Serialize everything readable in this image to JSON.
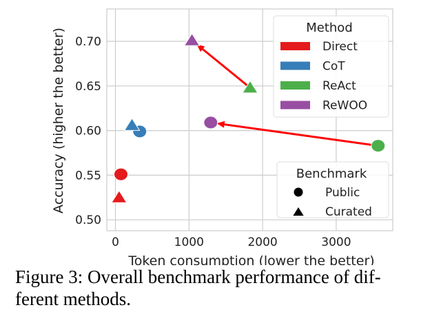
{
  "chart_data": {
    "type": "scatter",
    "xlabel": "Token consumption (lower the better)",
    "ylabel": "Accuracy (higher the better)",
    "xlim": [
      -100,
      3800
    ],
    "ylim": [
      0.49,
      0.73
    ],
    "xticks": [
      "0",
      "1000",
      "2000",
      "3000"
    ],
    "yticks": [
      "0.50",
      "0.55",
      "0.60",
      "0.65",
      "0.70"
    ],
    "grid": true,
    "series": [
      {
        "name": "Direct",
        "color": "#e41a1c",
        "points": [
          {
            "benchmark": "Public",
            "x": 75,
            "y": 0.551
          },
          {
            "benchmark": "Curated",
            "x": 50,
            "y": 0.525
          }
        ]
      },
      {
        "name": "CoT",
        "color": "#377eb8",
        "points": [
          {
            "benchmark": "Public",
            "x": 330,
            "y": 0.599
          },
          {
            "benchmark": "Curated",
            "x": 225,
            "y": 0.606
          }
        ]
      },
      {
        "name": "ReAct",
        "color": "#4daf4a",
        "points": [
          {
            "benchmark": "Public",
            "x": 3570,
            "y": 0.583
          },
          {
            "benchmark": "Curated",
            "x": 1830,
            "y": 0.648
          }
        ]
      },
      {
        "name": "ReWOO",
        "color": "#984ea3",
        "points": [
          {
            "benchmark": "Public",
            "x": 1295,
            "y": 0.609
          },
          {
            "benchmark": "Curated",
            "x": 1040,
            "y": 0.701
          }
        ]
      }
    ],
    "arrows": [
      {
        "from": "ReAct",
        "to": "ReWOO",
        "benchmark": "Curated",
        "color": "#ff0000"
      },
      {
        "from": "ReAct",
        "to": "ReWOO",
        "benchmark": "Public",
        "color": "#ff0000"
      }
    ],
    "legends": [
      {
        "title": "Method",
        "entries": [
          "Direct",
          "CoT",
          "ReAct",
          "ReWOO"
        ],
        "placement": "top-right"
      },
      {
        "title": "Benchmark",
        "entries": [
          "Public",
          "Curated"
        ],
        "markers": [
          "circle",
          "triangle"
        ],
        "placement": "bottom-right"
      }
    ]
  },
  "caption": {
    "line1": "Figure 3: Overall benchmark performance of dif-",
    "line2": "ferent methods."
  }
}
